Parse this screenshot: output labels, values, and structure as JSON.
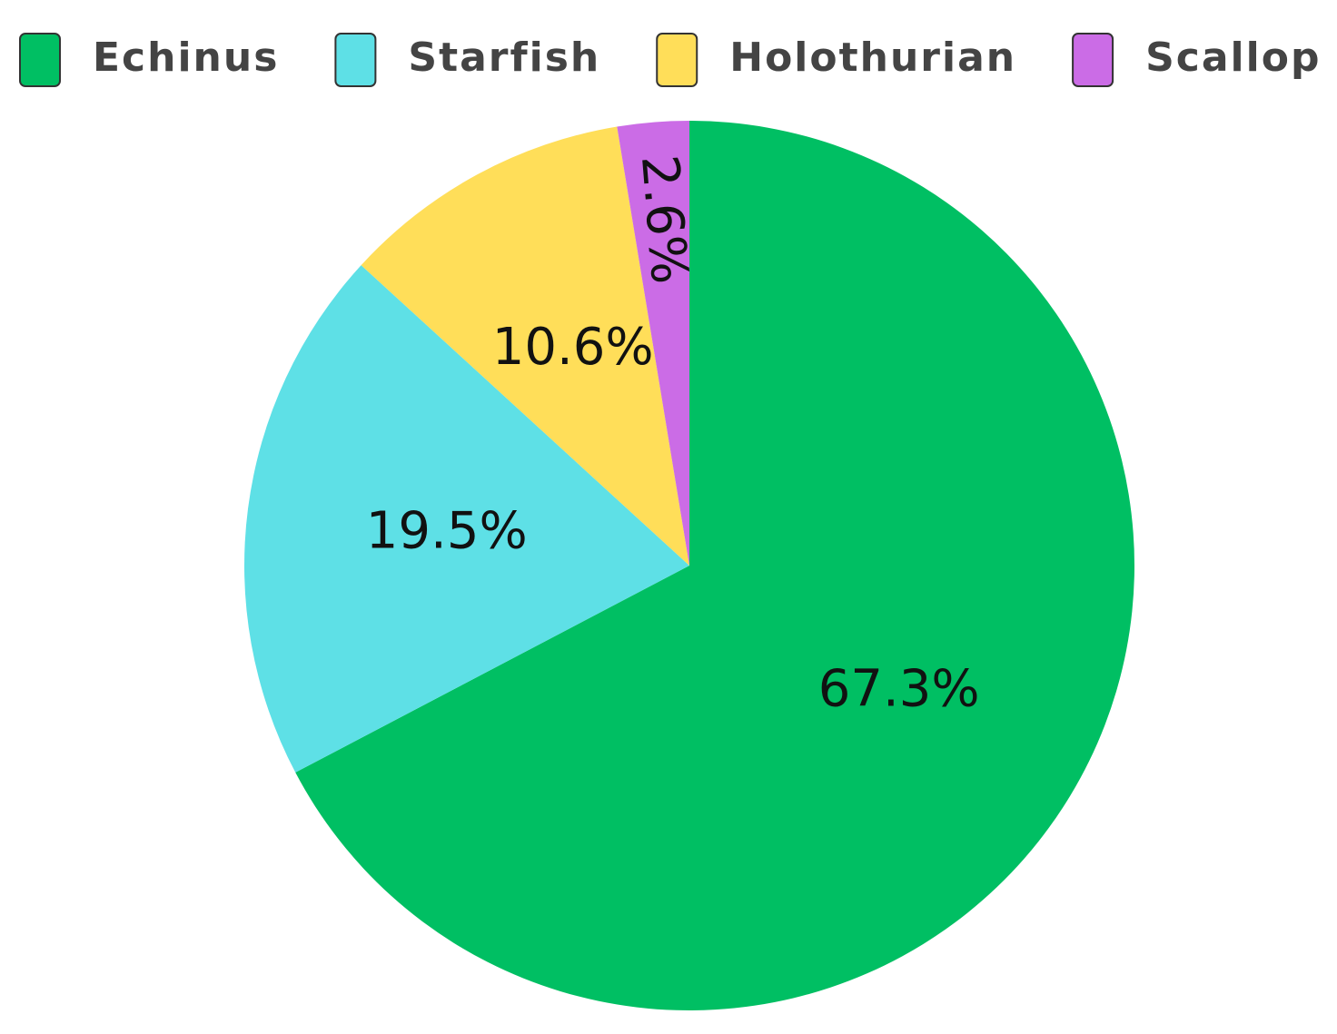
{
  "chart_data": {
    "type": "pie",
    "categories": [
      "Echinus",
      "Starfish",
      "Holothurian",
      "Scallop"
    ],
    "values": [
      67.3,
      19.5,
      10.6,
      2.6
    ],
    "value_labels": [
      "67.3%",
      "19.5%",
      "10.6%",
      "2.6%"
    ],
    "colors": [
      "#00bf63",
      "#5ee0e6",
      "#ffde59",
      "#cb6ce6"
    ],
    "legend": "top"
  }
}
